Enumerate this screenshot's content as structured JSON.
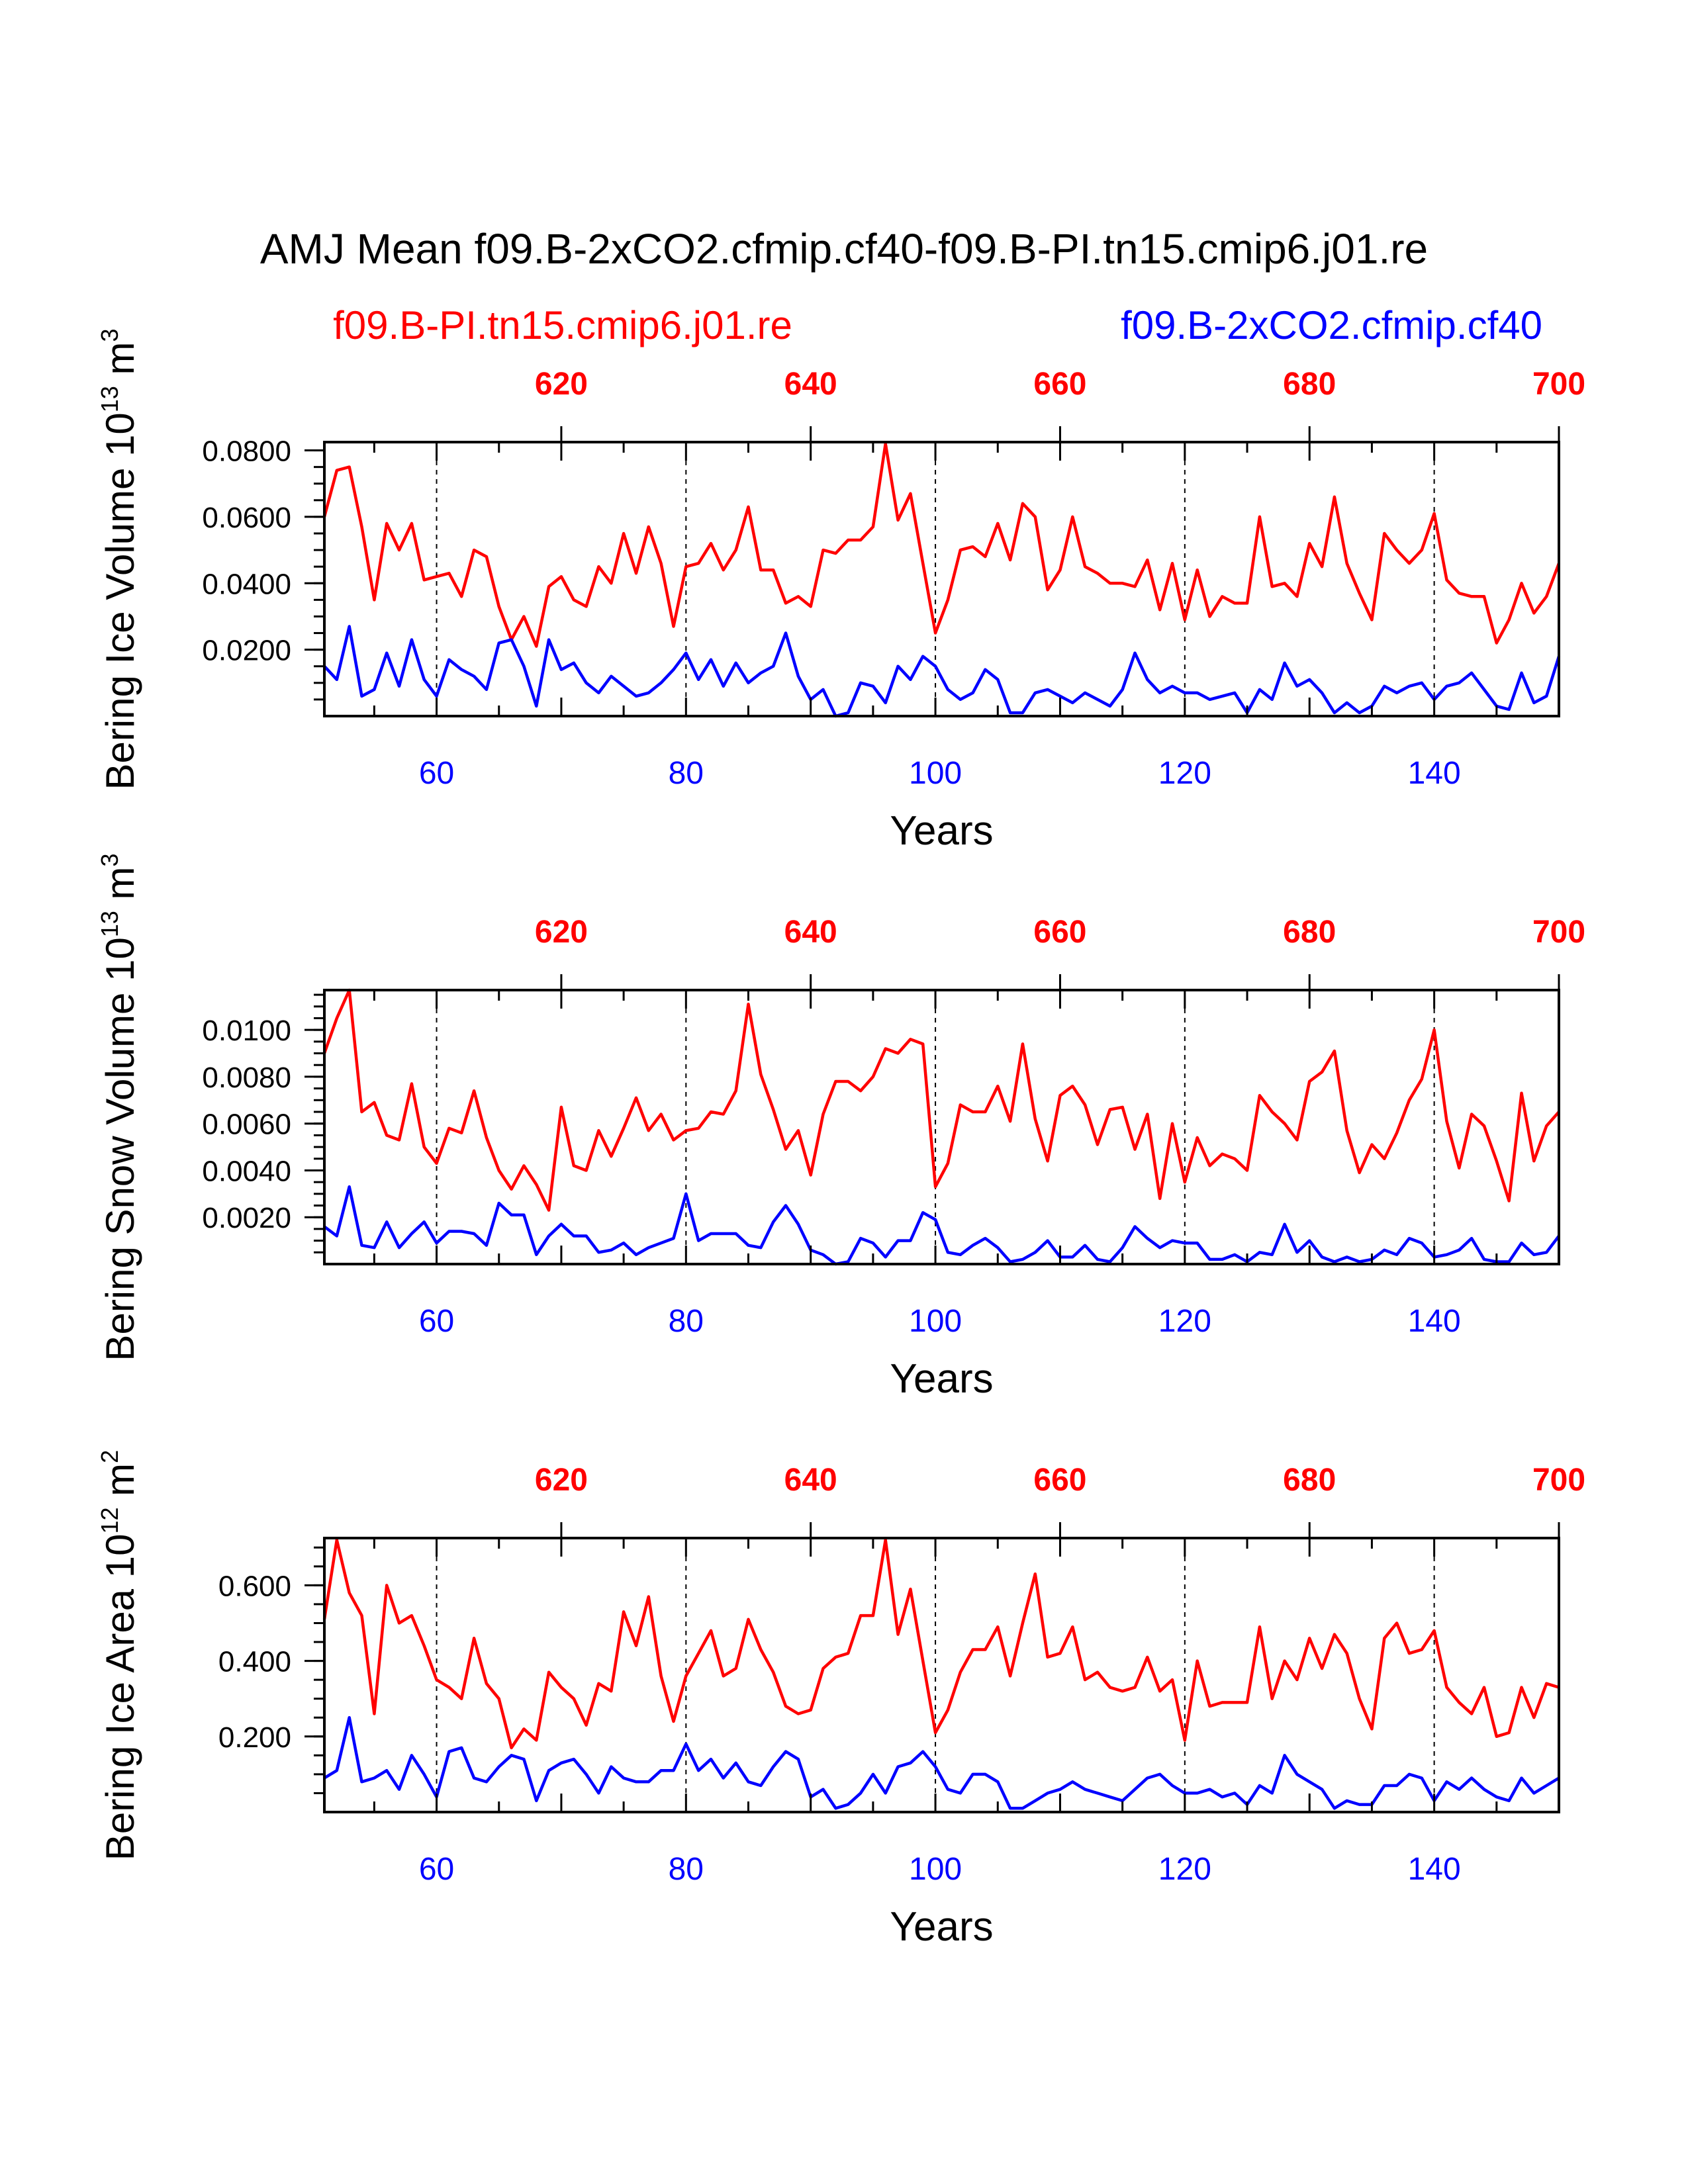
{
  "colors": {
    "ctrl": "#ff0000",
    "exp": "#0000ff",
    "axis": "#000000"
  },
  "title": "AMJ Mean f09.B-2xCO2.cfmip.cf40-f09.B-PI.tn15.cmip6.j01.re",
  "legend": {
    "ctrl": "f09.B-PI.tn15.cmip6.j01.re",
    "exp": "f09.B-2xCO2.cfmip.cf40"
  },
  "chart_data": [
    {
      "type": "line",
      "ylabel": {
        "prefix": "Bering Ice Volume 10",
        "exp": "13",
        "mid": " m",
        "exp2": "3"
      },
      "xlabel": "Years",
      "xlim": [
        51,
        150
      ],
      "ylim": [
        0.0,
        0.0825
      ],
      "yticks": [
        0.02,
        0.04,
        0.06,
        0.08
      ],
      "ytick_labels": [
        "0.0200",
        "0.0400",
        "0.0600",
        "0.0800"
      ],
      "yminor_step": 0.005,
      "xticks_bottom": [
        60,
        80,
        100,
        120,
        140
      ],
      "xticks_top": [
        620,
        640,
        660,
        680,
        700
      ],
      "top_offset": 550,
      "grid_x": [
        60,
        80,
        100,
        120,
        140
      ],
      "series": [
        {
          "name": "f09.B-PI.tn15.cmip6.j01.re",
          "color_key": "ctrl",
          "values": [
            0.06,
            0.074,
            0.075,
            0.057,
            0.035,
            0.058,
            0.05,
            0.058,
            0.041,
            0.042,
            0.043,
            0.036,
            0.05,
            0.048,
            0.033,
            0.023,
            0.03,
            0.021,
            0.039,
            0.042,
            0.035,
            0.033,
            0.045,
            0.04,
            0.055,
            0.043,
            0.057,
            0.046,
            0.027,
            0.045,
            0.046,
            0.052,
            0.044,
            0.05,
            0.063,
            0.044,
            0.044,
            0.034,
            0.036,
            0.033,
            0.05,
            0.049,
            0.053,
            0.053,
            0.057,
            0.082,
            0.059,
            0.067,
            0.046,
            0.025,
            0.035,
            0.05,
            0.051,
            0.048,
            0.058,
            0.047,
            0.064,
            0.06,
            0.038,
            0.044,
            0.06,
            0.045,
            0.043,
            0.04,
            0.04,
            0.039,
            0.047,
            0.032,
            0.046,
            0.029,
            0.044,
            0.03,
            0.036,
            0.034,
            0.034,
            0.06,
            0.039,
            0.04,
            0.036,
            0.052,
            0.045,
            0.066,
            0.046,
            0.037,
            0.029,
            0.055,
            0.05,
            0.046,
            0.05,
            0.061,
            0.041,
            0.037,
            0.036,
            0.036,
            0.022,
            0.029,
            0.04,
            0.031,
            0.036,
            0.046
          ]
        },
        {
          "name": "f09.B-2xCO2.cfmip.cf40",
          "color_key": "exp",
          "values": [
            0.015,
            0.011,
            0.027,
            0.006,
            0.008,
            0.019,
            0.009,
            0.023,
            0.011,
            0.006,
            0.017,
            0.014,
            0.012,
            0.008,
            0.022,
            0.023,
            0.015,
            0.003,
            0.023,
            0.014,
            0.016,
            0.01,
            0.007,
            0.012,
            0.009,
            0.006,
            0.007,
            0.01,
            0.014,
            0.019,
            0.011,
            0.017,
            0.009,
            0.016,
            0.01,
            0.013,
            0.015,
            0.025,
            0.012,
            0.005,
            0.008,
            0.0,
            0.001,
            0.01,
            0.009,
            0.004,
            0.015,
            0.011,
            0.018,
            0.015,
            0.008,
            0.005,
            0.007,
            0.014,
            0.011,
            0.001,
            0.001,
            0.007,
            0.008,
            0.006,
            0.004,
            0.007,
            0.005,
            0.003,
            0.008,
            0.019,
            0.011,
            0.007,
            0.009,
            0.007,
            0.007,
            0.005,
            0.006,
            0.007,
            0.001,
            0.008,
            0.005,
            0.016,
            0.009,
            0.011,
            0.007,
            0.001,
            0.004,
            0.001,
            0.003,
            0.009,
            0.007,
            0.009,
            0.01,
            0.005,
            0.009,
            0.01,
            0.013,
            0.008,
            0.003,
            0.002,
            0.013,
            0.004,
            0.006,
            0.018
          ]
        }
      ]
    },
    {
      "type": "line",
      "ylabel": {
        "prefix": "Bering Snow Volume 10",
        "exp": "13",
        "mid": " m",
        "exp2": "3"
      },
      "xlabel": "Years",
      "xlim": [
        51,
        150
      ],
      "ylim": [
        0.0,
        0.0117
      ],
      "yticks": [
        0.002,
        0.004,
        0.006,
        0.008,
        0.01
      ],
      "ytick_labels": [
        "0.0020",
        "0.0040",
        "0.0060",
        "0.0080",
        "0.0100"
      ],
      "yminor_step": 0.0005,
      "xticks_bottom": [
        60,
        80,
        100,
        120,
        140
      ],
      "xticks_top": [
        620,
        640,
        660,
        680,
        700
      ],
      "top_offset": 550,
      "grid_x": [
        60,
        80,
        100,
        120,
        140
      ],
      "series": [
        {
          "name": "f09.B-PI.tn15.cmip6.j01.re",
          "color_key": "ctrl",
          "values": [
            0.009,
            0.0105,
            0.0117,
            0.0065,
            0.0069,
            0.0055,
            0.0053,
            0.0077,
            0.005,
            0.0043,
            0.0058,
            0.0056,
            0.0074,
            0.0054,
            0.004,
            0.0032,
            0.0042,
            0.0034,
            0.0023,
            0.0067,
            0.0042,
            0.004,
            0.0057,
            0.0046,
            0.0058,
            0.0071,
            0.0057,
            0.0064,
            0.0053,
            0.0057,
            0.0058,
            0.0065,
            0.0064,
            0.0074,
            0.0111,
            0.0081,
            0.0066,
            0.0049,
            0.0057,
            0.0038,
            0.0064,
            0.0078,
            0.0078,
            0.0074,
            0.008,
            0.0092,
            0.009,
            0.0096,
            0.0094,
            0.0033,
            0.0043,
            0.0068,
            0.0065,
            0.0065,
            0.0076,
            0.0061,
            0.0094,
            0.0062,
            0.0044,
            0.0072,
            0.0076,
            0.0068,
            0.0051,
            0.0066,
            0.0067,
            0.0049,
            0.0064,
            0.0028,
            0.006,
            0.0035,
            0.0054,
            0.0042,
            0.0047,
            0.0045,
            0.004,
            0.0072,
            0.0065,
            0.006,
            0.0053,
            0.0078,
            0.0082,
            0.0091,
            0.0057,
            0.0039,
            0.0051,
            0.0045,
            0.0056,
            0.007,
            0.0079,
            0.01,
            0.0061,
            0.0041,
            0.0064,
            0.0059,
            0.0044,
            0.0027,
            0.0073,
            0.0044,
            0.0059,
            0.0065
          ]
        },
        {
          "name": "f09.B-2xCO2.cfmip.cf40",
          "color_key": "exp",
          "values": [
            0.0016,
            0.0012,
            0.0033,
            0.0008,
            0.0007,
            0.0018,
            0.0007,
            0.0013,
            0.0018,
            0.0009,
            0.0014,
            0.0014,
            0.0013,
            0.0008,
            0.0026,
            0.0021,
            0.0021,
            0.0004,
            0.0012,
            0.0017,
            0.0012,
            0.0012,
            0.0005,
            0.0006,
            0.0009,
            0.0004,
            0.0007,
            0.0009,
            0.0011,
            0.003,
            0.001,
            0.0013,
            0.0013,
            0.0013,
            0.0008,
            0.0007,
            0.0018,
            0.0025,
            0.0017,
            0.0006,
            0.0004,
            0.0,
            0.0001,
            0.0011,
            0.0009,
            0.0003,
            0.001,
            0.001,
            0.0022,
            0.0019,
            0.0005,
            0.0004,
            0.0008,
            0.0011,
            0.0007,
            0.0001,
            0.0002,
            0.0005,
            0.001,
            0.0003,
            0.0003,
            0.0008,
            0.0002,
            0.0001,
            0.0007,
            0.0016,
            0.0011,
            0.0007,
            0.001,
            0.0009,
            0.0009,
            0.0002,
            0.0002,
            0.0004,
            0.0001,
            0.0005,
            0.0004,
            0.0017,
            0.0005,
            0.001,
            0.0003,
            0.0001,
            0.0003,
            0.0001,
            0.0002,
            0.0006,
            0.0004,
            0.0011,
            0.0009,
            0.0003,
            0.0004,
            0.0006,
            0.0011,
            0.0002,
            0.0001,
            0.0001,
            0.0009,
            0.0004,
            0.0005,
            0.0012
          ]
        }
      ]
    },
    {
      "type": "line",
      "ylabel": {
        "prefix": "Bering Ice Area 10",
        "exp": "12",
        "mid": " m",
        "exp2": "2"
      },
      "xlabel": "Years",
      "xlim": [
        51,
        150
      ],
      "ylim": [
        0.0,
        0.725
      ],
      "yticks": [
        0.2,
        0.4,
        0.6
      ],
      "ytick_labels": [
        "0.200",
        "0.400",
        "0.600"
      ],
      "yminor_step": 0.05,
      "xticks_bottom": [
        60,
        80,
        100,
        120,
        140
      ],
      "xticks_top": [
        620,
        640,
        660,
        680,
        700
      ],
      "top_offset": 550,
      "grid_x": [
        60,
        80,
        100,
        120,
        140
      ],
      "series": [
        {
          "name": "f09.B-PI.tn15.cmip6.j01.re",
          "color_key": "ctrl",
          "values": [
            0.51,
            0.72,
            0.58,
            0.52,
            0.26,
            0.6,
            0.5,
            0.52,
            0.44,
            0.35,
            0.33,
            0.3,
            0.46,
            0.34,
            0.3,
            0.17,
            0.22,
            0.19,
            0.37,
            0.33,
            0.3,
            0.23,
            0.34,
            0.32,
            0.53,
            0.44,
            0.57,
            0.36,
            0.24,
            0.36,
            0.42,
            0.48,
            0.36,
            0.38,
            0.51,
            0.43,
            0.37,
            0.28,
            0.26,
            0.27,
            0.38,
            0.41,
            0.42,
            0.52,
            0.52,
            0.72,
            0.47,
            0.59,
            0.4,
            0.21,
            0.27,
            0.37,
            0.43,
            0.43,
            0.49,
            0.36,
            0.5,
            0.63,
            0.41,
            0.42,
            0.49,
            0.35,
            0.37,
            0.33,
            0.32,
            0.33,
            0.41,
            0.32,
            0.35,
            0.19,
            0.4,
            0.28,
            0.29,
            0.29,
            0.29,
            0.49,
            0.3,
            0.4,
            0.35,
            0.46,
            0.38,
            0.47,
            0.42,
            0.3,
            0.22,
            0.46,
            0.5,
            0.42,
            0.43,
            0.48,
            0.33,
            0.29,
            0.26,
            0.33,
            0.2,
            0.21,
            0.33,
            0.25,
            0.34,
            0.33
          ]
        },
        {
          "name": "f09.B-2xCO2.cfmip.cf40",
          "color_key": "exp",
          "values": [
            0.09,
            0.11,
            0.25,
            0.08,
            0.09,
            0.11,
            0.06,
            0.15,
            0.1,
            0.04,
            0.16,
            0.17,
            0.09,
            0.08,
            0.12,
            0.15,
            0.14,
            0.03,
            0.11,
            0.13,
            0.14,
            0.1,
            0.05,
            0.12,
            0.09,
            0.08,
            0.08,
            0.11,
            0.11,
            0.18,
            0.11,
            0.14,
            0.09,
            0.13,
            0.08,
            0.07,
            0.12,
            0.16,
            0.14,
            0.04,
            0.06,
            0.01,
            0.02,
            0.05,
            0.1,
            0.05,
            0.12,
            0.13,
            0.16,
            0.12,
            0.06,
            0.05,
            0.1,
            0.1,
            0.08,
            0.01,
            0.01,
            0.03,
            0.05,
            0.06,
            0.08,
            0.06,
            0.05,
            0.04,
            0.03,
            0.06,
            0.09,
            0.1,
            0.07,
            0.05,
            0.05,
            0.06,
            0.04,
            0.05,
            0.02,
            0.07,
            0.05,
            0.15,
            0.1,
            0.08,
            0.06,
            0.01,
            0.03,
            0.02,
            0.02,
            0.07,
            0.07,
            0.1,
            0.09,
            0.03,
            0.08,
            0.06,
            0.09,
            0.06,
            0.04,
            0.03,
            0.09,
            0.05,
            0.07,
            0.09
          ]
        }
      ]
    }
  ]
}
